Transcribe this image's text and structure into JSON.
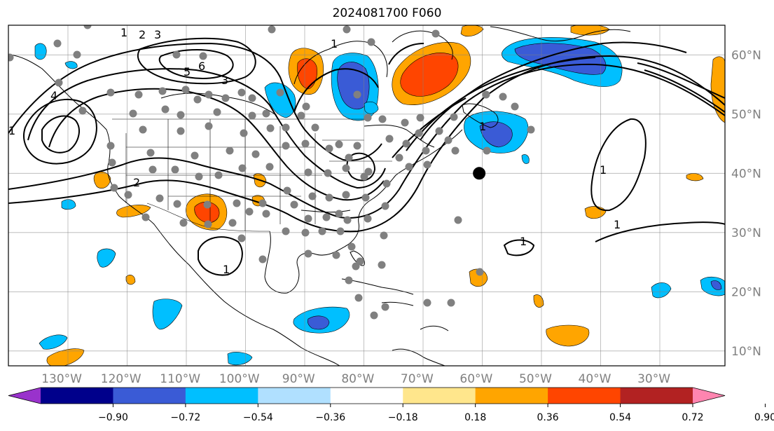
{
  "title": "2024081700 F060",
  "chart_data": {
    "type": "map",
    "projection": "plate-carree",
    "extent": {
      "lon": [
        -139,
        -18
      ],
      "lat": [
        7.5,
        65
      ]
    },
    "gridlines": true,
    "lon_ticks": [
      {
        "value": -130,
        "label": "130°W"
      },
      {
        "value": -120,
        "label": "120°W"
      },
      {
        "value": -110,
        "label": "110°W"
      },
      {
        "value": -100,
        "label": "100°W"
      },
      {
        "value": -90,
        "label": "90°W"
      },
      {
        "value": -80,
        "label": "80°W"
      },
      {
        "value": -70,
        "label": "70°W"
      },
      {
        "value": -60,
        "label": "60°W"
      },
      {
        "value": -50,
        "label": "50°W"
      },
      {
        "value": -40,
        "label": "40°W"
      },
      {
        "value": -30,
        "label": "30°W"
      }
    ],
    "lat_ticks": [
      {
        "value": 60,
        "label": "60°N"
      },
      {
        "value": 50,
        "label": "50°N"
      },
      {
        "value": 40,
        "label": "40°N"
      },
      {
        "value": 30,
        "label": "30°N"
      },
      {
        "value": 20,
        "label": "20°N"
      },
      {
        "value": 10,
        "label": "10°N"
      }
    ],
    "colorbar": {
      "extend": "both",
      "levels": [
        "−0.90",
        "−0.72",
        "−0.54",
        "−0.36",
        "−0.18",
        "0.18",
        "0.36",
        "0.54",
        "0.72",
        "0.90"
      ],
      "colors": [
        "#9932cc",
        "#00008b",
        "#3a5bd6",
        "#00bfff",
        "#b0e0ff",
        "#ffffff",
        "#ffe68c",
        "#ffa500",
        "#ff4500",
        "#b22222",
        "#ff85b0"
      ]
    },
    "contour_labels": [
      "1",
      "2",
      "3",
      "4",
      "5",
      "6",
      "1",
      "2",
      "3",
      "1",
      "1",
      "1",
      "1",
      "1",
      "1"
    ],
    "marker": {
      "lon": -59.5,
      "lat": 40
    }
  }
}
